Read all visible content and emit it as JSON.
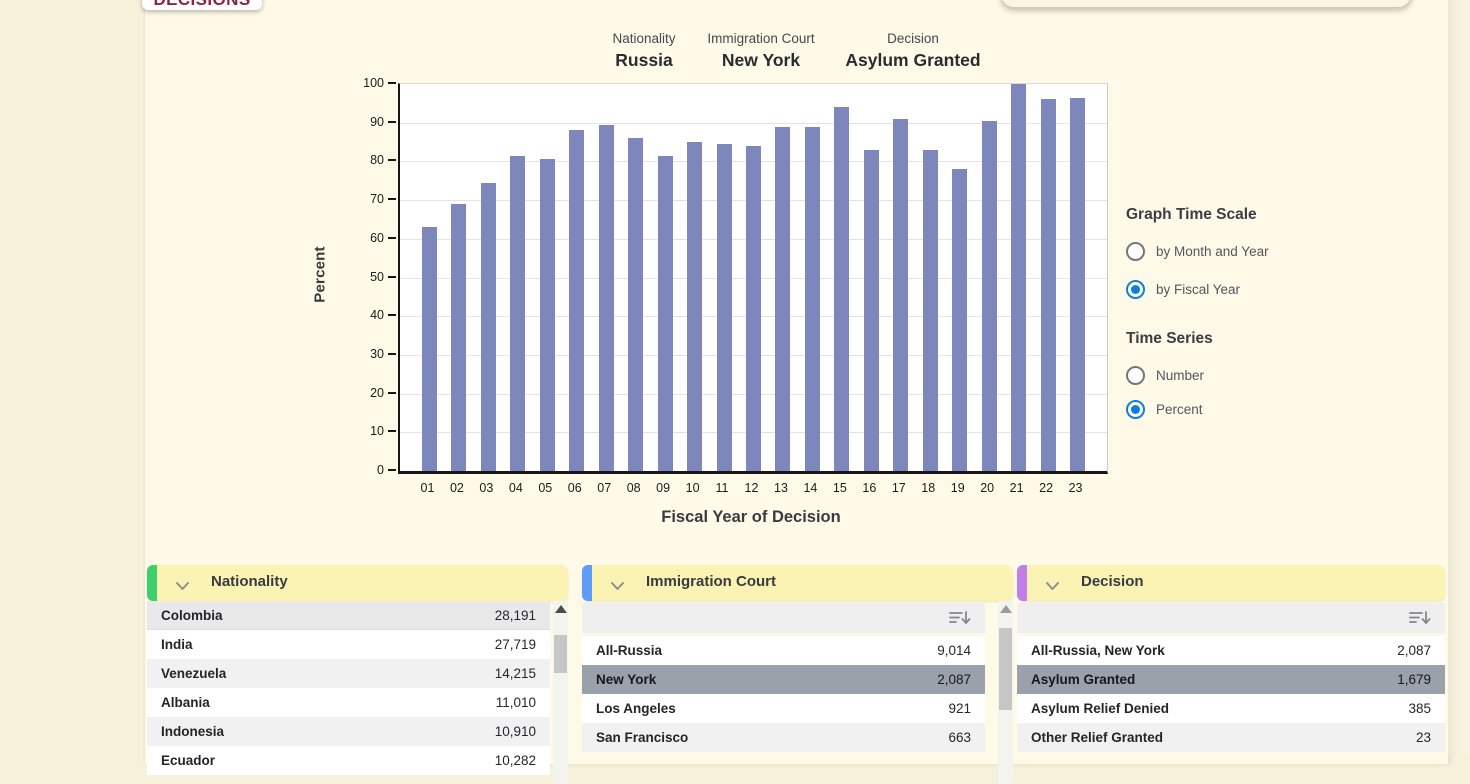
{
  "page": {
    "decisions_label": "DECISIONS"
  },
  "chart_header": {
    "columns": [
      {
        "label": "Nationality",
        "value": "Russia"
      },
      {
        "label": "Immigration Court",
        "value": "New York"
      },
      {
        "label": "Decision",
        "value": "Asylum Granted"
      }
    ]
  },
  "chart_data": {
    "type": "bar",
    "categories": [
      "01",
      "02",
      "03",
      "04",
      "05",
      "06",
      "07",
      "08",
      "09",
      "10",
      "11",
      "12",
      "13",
      "14",
      "15",
      "16",
      "17",
      "18",
      "19",
      "20",
      "21",
      "22",
      "23"
    ],
    "values": [
      63,
      69,
      74.5,
      81.5,
      80.5,
      88,
      89.5,
      86,
      81.5,
      85,
      84.5,
      84,
      89,
      89,
      94,
      83,
      91,
      83,
      78,
      90.5,
      100,
      96,
      96.5
    ],
    "title": "",
    "xlabel": "Fiscal Year of Decision",
    "ylabel": "Percent",
    "ylim": [
      0,
      100
    ],
    "ytick_step": 10,
    "grid": true,
    "legend": "none",
    "bar_color": "#7D87BB"
  },
  "controls": {
    "groups": [
      {
        "heading": "Graph Time Scale",
        "options": [
          {
            "label": "by Month and Year",
            "selected": false
          },
          {
            "label": "by Fiscal Year",
            "selected": true
          }
        ]
      },
      {
        "heading": "Time Series",
        "options": [
          {
            "label": "Number",
            "selected": false
          },
          {
            "label": "Percent",
            "selected": true
          }
        ]
      }
    ]
  },
  "panels": [
    {
      "title": "Nationality",
      "accent_color": "#3FCF6C",
      "has_toolbar": false,
      "has_scrollbar": true,
      "rows": [
        {
          "name": "Colombia",
          "value": "28,191",
          "state": "shade-dark"
        },
        {
          "name": "India",
          "value": "27,719",
          "state": "plain"
        },
        {
          "name": "Venezuela",
          "value": "14,215",
          "state": "shade"
        },
        {
          "name": "Albania",
          "value": "11,010",
          "state": "plain"
        },
        {
          "name": "Indonesia",
          "value": "10,910",
          "state": "shade"
        },
        {
          "name": "Ecuador",
          "value": "10,282",
          "state": "plain"
        }
      ]
    },
    {
      "title": "Immigration Court",
      "accent_color": "#5E9CF7",
      "has_toolbar": true,
      "has_scrollbar": true,
      "rows": [
        {
          "name": "All-Russia",
          "value": "9,014",
          "state": "plain"
        },
        {
          "name": "New York",
          "value": "2,087",
          "state": "selected"
        },
        {
          "name": "Los Angeles",
          "value": "921",
          "state": "plain"
        },
        {
          "name": "San Francisco",
          "value": "663",
          "state": "shade"
        }
      ]
    },
    {
      "title": "Decision",
      "accent_color": "#C07EE6",
      "has_toolbar": true,
      "has_scrollbar": false,
      "rows": [
        {
          "name": "All-Russia, New York",
          "value": "2,087",
          "state": "plain"
        },
        {
          "name": "Asylum Granted",
          "value": "1,679",
          "state": "selected"
        },
        {
          "name": "Asylum Relief Denied",
          "value": "385",
          "state": "plain"
        },
        {
          "name": "Other Relief Granted",
          "value": "23",
          "state": "shade"
        }
      ]
    }
  ],
  "icons": {
    "chevron": "chevron-down-icon",
    "sort": "sort-descending-icon",
    "scroll_up": "scroll-up-icon"
  },
  "colors": {
    "selected_row": "#9BA1AB",
    "radio_selected": "#0E7FDE",
    "panel_header": "#FAF3B3",
    "maroon_title": "#8E2142"
  }
}
